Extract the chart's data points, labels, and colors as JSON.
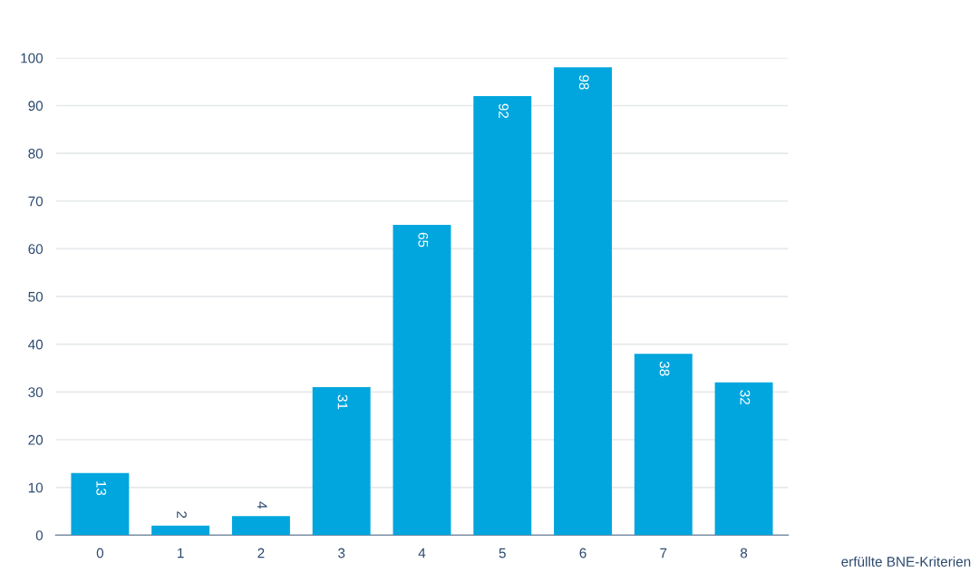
{
  "chart_data": {
    "type": "bar",
    "xlabel": "erfüllte BNE-Kriterien",
    "categories": [
      "0",
      "1",
      "2",
      "3",
      "4",
      "5",
      "6",
      "7",
      "8"
    ],
    "values": [
      13,
      2,
      4,
      31,
      65,
      92,
      98,
      38,
      32
    ],
    "color": "#00a6dd",
    "ylim": [
      0,
      100
    ],
    "yticks": [
      0,
      10,
      20,
      30,
      40,
      50,
      60,
      70,
      80,
      90,
      100
    ],
    "grid": "y",
    "data_labels": true
  }
}
